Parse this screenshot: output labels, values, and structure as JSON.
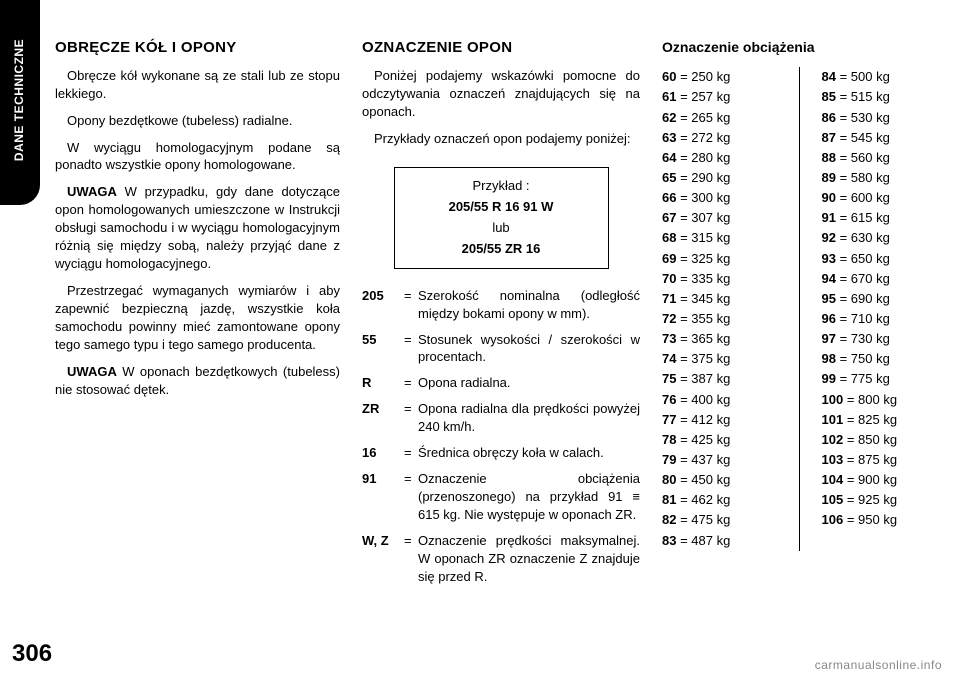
{
  "tab_label": "DANE TECHNICZNE",
  "page_number": "306",
  "footer": "carmanualsonline.info",
  "col1": {
    "heading": "OBRĘCZE KÓŁ I OPONY",
    "p1": "Obręcze kół wykonane są ze stali lub ze stopu lekkiego.",
    "p2": "Opony bezdętkowe (tubeless) radialne.",
    "p3": "W wyciągu homologacyjnym podane są ponadto wszystkie opony homologowane.",
    "p4_strong": "UWAGA",
    "p4": " W przypadku, gdy dane dotyczące opon homologowanych umieszczone w Instrukcji obsługi samochodu i w wyciągu homologacyjnym różnią się między sobą, należy przyjąć dane z wyciągu homologacyjnego.",
    "p5": "Przestrzegać wymaganych wymiarów i aby zapewnić bezpieczną jazdę, wszystkie koła samochodu powinny mieć zamontowane opony tego samego typu i tego samego producenta.",
    "p6_strong": "UWAGA",
    "p6": " W oponach bezdętkowych (tubeless) nie stosować dętek."
  },
  "col2": {
    "heading": "OZNACZENIE OPON",
    "p1": "Poniżej podajemy wskazówki pomocne do odczytywania oznaczeń znajdujących się na oponach.",
    "p2": "Przykłady oznaczeń opon podajemy poniżej:",
    "example_label": "Przykład :",
    "example_line1": "205/55 R 16 91 W",
    "example_or": "lub",
    "example_line2": "205/55 ZR 16",
    "defs": [
      {
        "code": "205",
        "text": "Szerokość nominalna (odległość między bokami opony w mm)."
      },
      {
        "code": "55",
        "text": "Stosunek wysokości / szerokości w procentach."
      },
      {
        "code": "R",
        "text": "Opona radialna."
      },
      {
        "code": "ZR",
        "text": "Opona radialna dla prędkości powyżej 240 km/h."
      },
      {
        "code": "16",
        "text": "Średnica obręczy koła w calach."
      },
      {
        "code": "91",
        "text": "Oznaczenie obciążenia (przenoszonego) na przykład 91 ≡ 615 kg. Nie występuje w oponach ZR."
      },
      {
        "code": "W, Z",
        "text": "Oznaczenie prędkości maksymalnej. W oponach ZR oznaczenie Z znajduje się przed R."
      }
    ]
  },
  "col3": {
    "heading": "Oznaczenie obciążenia",
    "left": [
      {
        "idx": "60",
        "kg": "250"
      },
      {
        "idx": "61",
        "kg": "257"
      },
      {
        "idx": "62",
        "kg": "265"
      },
      {
        "idx": "63",
        "kg": "272"
      },
      {
        "idx": "64",
        "kg": "280"
      },
      {
        "idx": "65",
        "kg": "290"
      },
      {
        "idx": "66",
        "kg": "300"
      },
      {
        "idx": "67",
        "kg": "307"
      },
      {
        "idx": "68",
        "kg": "315"
      },
      {
        "idx": "69",
        "kg": "325"
      },
      {
        "idx": "70",
        "kg": "335"
      },
      {
        "idx": "71",
        "kg": "345"
      },
      {
        "idx": "72",
        "kg": "355"
      },
      {
        "idx": "73",
        "kg": "365"
      },
      {
        "idx": "74",
        "kg": "375"
      },
      {
        "idx": "75",
        "kg": "387"
      },
      {
        "idx": "76",
        "kg": "400"
      },
      {
        "idx": "77",
        "kg": "412"
      },
      {
        "idx": "78",
        "kg": "425"
      },
      {
        "idx": "79",
        "kg": "437"
      },
      {
        "idx": "80",
        "kg": "450"
      },
      {
        "idx": "81",
        "kg": "462"
      },
      {
        "idx": "82",
        "kg": "475"
      },
      {
        "idx": "83",
        "kg": "487"
      }
    ],
    "right": [
      {
        "idx": "84",
        "kg": "500"
      },
      {
        "idx": "85",
        "kg": "515"
      },
      {
        "idx": "86",
        "kg": "530"
      },
      {
        "idx": "87",
        "kg": "545"
      },
      {
        "idx": "88",
        "kg": "560"
      },
      {
        "idx": "89",
        "kg": "580"
      },
      {
        "idx": "90",
        "kg": "600"
      },
      {
        "idx": "91",
        "kg": "615"
      },
      {
        "idx": "92",
        "kg": "630"
      },
      {
        "idx": "93",
        "kg": "650"
      },
      {
        "idx": "94",
        "kg": "670"
      },
      {
        "idx": "95",
        "kg": "690"
      },
      {
        "idx": "96",
        "kg": "710"
      },
      {
        "idx": "97",
        "kg": "730"
      },
      {
        "idx": "98",
        "kg": "750"
      },
      {
        "idx": "99",
        "kg": "775"
      },
      {
        "idx": "100",
        "kg": "800"
      },
      {
        "idx": "101",
        "kg": "825"
      },
      {
        "idx": "102",
        "kg": "850"
      },
      {
        "idx": "103",
        "kg": "875"
      },
      {
        "idx": "104",
        "kg": "900"
      },
      {
        "idx": "105",
        "kg": "925"
      },
      {
        "idx": "106",
        "kg": "950"
      }
    ]
  }
}
